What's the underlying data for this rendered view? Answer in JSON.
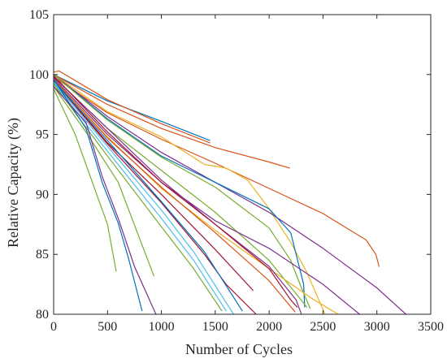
{
  "chart_data": {
    "type": "line",
    "title": "",
    "xlabel": "Number of Cycles",
    "ylabel": "Relative Capacity (%)",
    "xlim": [
      0,
      3500
    ],
    "ylim": [
      80,
      105
    ],
    "xticks": [
      0,
      500,
      1000,
      1500,
      2000,
      2500,
      3000,
      3500
    ],
    "yticks": [
      80,
      85,
      90,
      95,
      100,
      105
    ],
    "grid": false,
    "legend": "none",
    "series": [
      {
        "color": "#0072BD",
        "points": [
          [
            0,
            100
          ],
          [
            500,
            97.8
          ],
          [
            1000,
            96.1
          ],
          [
            1450,
            94.5
          ]
        ]
      },
      {
        "color": "#D95319",
        "points": [
          [
            0,
            100.2
          ],
          [
            50,
            100.3
          ],
          [
            500,
            97.9
          ],
          [
            1000,
            95.9
          ],
          [
            1450,
            94.3
          ]
        ]
      },
      {
        "color": "#D95319",
        "points": [
          [
            0,
            100
          ],
          [
            500,
            97.5
          ],
          [
            1000,
            95.5
          ],
          [
            1500,
            93.9
          ],
          [
            2000,
            92.7
          ],
          [
            2190,
            92.2
          ]
        ]
      },
      {
        "color": "#D95319",
        "points": [
          [
            0,
            99.8
          ],
          [
            500,
            96.8
          ],
          [
            1000,
            94.6
          ],
          [
            1500,
            92.6
          ],
          [
            2000,
            90.5
          ],
          [
            2500,
            88.4
          ],
          [
            2900,
            86.2
          ],
          [
            2990,
            85
          ],
          [
            3020,
            84
          ]
        ]
      },
      {
        "color": "#EDB120",
        "points": [
          [
            0,
            100
          ],
          [
            500,
            96.9
          ],
          [
            1000,
            94.8
          ],
          [
            1400,
            92.5
          ],
          [
            1600,
            92.2
          ],
          [
            1800,
            91.2
          ],
          [
            2000,
            88.8
          ],
          [
            2200,
            86
          ],
          [
            2350,
            83.5
          ],
          [
            2480,
            80.8
          ],
          [
            2520,
            80
          ]
        ]
      },
      {
        "color": "#7E2F8E",
        "points": [
          [
            0,
            100
          ],
          [
            500,
            96.5
          ],
          [
            1000,
            93.5
          ],
          [
            1500,
            91
          ],
          [
            2000,
            88.5
          ],
          [
            2500,
            85.5
          ],
          [
            3000,
            82.2
          ],
          [
            3270,
            80
          ]
        ]
      },
      {
        "color": "#0072BD",
        "points": [
          [
            0,
            100
          ],
          [
            500,
            96.3
          ],
          [
            1000,
            93.2
          ],
          [
            1500,
            91
          ],
          [
            2000,
            88.8
          ],
          [
            2200,
            86.8
          ],
          [
            2320,
            82.5
          ],
          [
            2330,
            80.6
          ]
        ]
      },
      {
        "color": "#77AC30",
        "points": [
          [
            0,
            100
          ],
          [
            500,
            96.2
          ],
          [
            1000,
            93.1
          ],
          [
            1500,
            90.6
          ],
          [
            2000,
            87.2
          ],
          [
            2200,
            84.5
          ],
          [
            2300,
            82.2
          ],
          [
            2380,
            80.5
          ]
        ]
      },
      {
        "color": "#77AC30",
        "points": [
          [
            0,
            99.8
          ],
          [
            500,
            95.5
          ],
          [
            1000,
            92
          ],
          [
            1500,
            88.5
          ],
          [
            2000,
            84.5
          ],
          [
            2350,
            80.6
          ]
        ]
      },
      {
        "color": "#7E2F8E",
        "points": [
          [
            0,
            99.7
          ],
          [
            500,
            95
          ],
          [
            1000,
            91
          ],
          [
            1500,
            87.8
          ],
          [
            2000,
            85.5
          ],
          [
            2500,
            82.5
          ],
          [
            2840,
            80
          ]
        ]
      },
      {
        "color": "#EDB120",
        "points": [
          [
            0,
            99.6
          ],
          [
            500,
            94.8
          ],
          [
            1000,
            90.5
          ],
          [
            1500,
            87
          ],
          [
            2000,
            83.8
          ],
          [
            2400,
            81.3
          ],
          [
            2640,
            80
          ]
        ]
      },
      {
        "color": "#7E2F8E",
        "points": [
          [
            0,
            99.8
          ],
          [
            500,
            95.5
          ],
          [
            1000,
            91.2
          ],
          [
            1500,
            87.5
          ],
          [
            2000,
            84
          ],
          [
            2250,
            81.2
          ],
          [
            2300,
            80
          ]
        ]
      },
      {
        "color": "#A2142F",
        "points": [
          [
            0,
            99.9
          ],
          [
            500,
            95.2
          ],
          [
            1000,
            91
          ],
          [
            1500,
            87.5
          ],
          [
            2000,
            83.8
          ],
          [
            2200,
            81.2
          ],
          [
            2260,
            80.6
          ]
        ]
      },
      {
        "color": "#D95319",
        "points": [
          [
            0,
            99.6
          ],
          [
            500,
            94.7
          ],
          [
            1000,
            90.6
          ],
          [
            1500,
            86.8
          ],
          [
            2000,
            82.8
          ],
          [
            2240,
            80.2
          ]
        ]
      },
      {
        "color": "#A2142F",
        "points": [
          [
            0,
            99.5
          ],
          [
            500,
            94.3
          ],
          [
            1000,
            90
          ],
          [
            1500,
            85.4
          ],
          [
            1850,
            82
          ]
        ]
      },
      {
        "color": "#A2142F",
        "points": [
          [
            0,
            99.5
          ],
          [
            500,
            94.2
          ],
          [
            1000,
            89.3
          ],
          [
            1400,
            85
          ],
          [
            1600,
            82.5
          ],
          [
            1880,
            80
          ]
        ]
      },
      {
        "color": "#0072BD",
        "points": [
          [
            0,
            99.5
          ],
          [
            500,
            94.5
          ],
          [
            1000,
            89.4
          ],
          [
            1400,
            85.2
          ],
          [
            1750,
            80.3
          ]
        ]
      },
      {
        "color": "#4DBEEE",
        "points": [
          [
            0,
            99.4
          ],
          [
            500,
            94
          ],
          [
            1000,
            88.7
          ],
          [
            1300,
            85.2
          ],
          [
            1670,
            80
          ]
        ]
      },
      {
        "color": "#4DBEEE",
        "points": [
          [
            0,
            99.3
          ],
          [
            500,
            93.6
          ],
          [
            1000,
            88
          ],
          [
            1300,
            84.5
          ],
          [
            1600,
            80.3
          ]
        ]
      },
      {
        "color": "#77AC30",
        "points": [
          [
            0,
            99.2
          ],
          [
            500,
            93.2
          ],
          [
            1000,
            87.3
          ],
          [
            1300,
            83.8
          ],
          [
            1560,
            80.3
          ]
        ]
      },
      {
        "color": "#77AC30",
        "points": [
          [
            0,
            99
          ],
          [
            300,
            95.2
          ],
          [
            600,
            91
          ],
          [
            930,
            83.2
          ]
        ]
      },
      {
        "color": "#0072BD",
        "points": [
          [
            0,
            99.6
          ],
          [
            300,
            95.5
          ],
          [
            450,
            91
          ],
          [
            600,
            87.6
          ],
          [
            700,
            84.5
          ],
          [
            820,
            80.3
          ]
        ]
      },
      {
        "color": "#7E2F8E",
        "points": [
          [
            0,
            99
          ],
          [
            300,
            96
          ],
          [
            450,
            91.5
          ],
          [
            600,
            88
          ],
          [
            750,
            84
          ],
          [
            950,
            80
          ]
        ]
      },
      {
        "color": "#77AC30",
        "points": [
          [
            0,
            98.8
          ],
          [
            200,
            95
          ],
          [
            400,
            90
          ],
          [
            500,
            87.5
          ],
          [
            580,
            83.6
          ]
        ]
      }
    ]
  }
}
